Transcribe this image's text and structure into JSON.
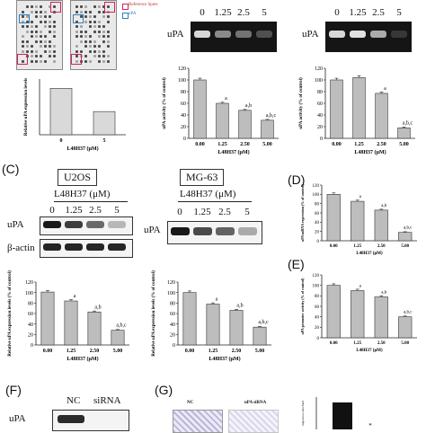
{
  "panels": {
    "A": {
      "legend": {
        "reference": "Reference Spots",
        "upa": "uPA"
      },
      "ylabel": "Relative uPA expression levels",
      "xlabel": "L48H37 (μM)",
      "categories": [
        "0",
        "5"
      ]
    },
    "B": {
      "blot_left": {
        "label": "uPA",
        "lanes": [
          "0",
          "1.25",
          "2.5",
          "5"
        ]
      },
      "blot_right": {
        "label": "uPA",
        "lanes": [
          "0",
          "1.25",
          "2.5",
          "5"
        ]
      },
      "chart_left": {
        "ylabel": "uPA activity (% of control)",
        "xlabel": "L48H37 (μM)"
      },
      "chart_right": {
        "ylabel": "uPA activity (% of control)",
        "xlabel": "L48H37 (μM)"
      }
    },
    "C": {
      "letter": "(C)",
      "u2os": {
        "title": "U2OS",
        "conc": "L48H37 (μM)",
        "lanes": [
          "0",
          "1.25",
          "2.5",
          "5"
        ],
        "rows": [
          "uPA",
          "β-actin"
        ]
      },
      "mg63": {
        "title": "MG-63",
        "conc": "L48H37 (μM)",
        "lanes": [
          "0",
          "1.25",
          "2.5",
          "5"
        ],
        "row": "uPA"
      },
      "chart_left": {
        "ylabel": "Relative uPA expression levels (% of control)",
        "xlabel": "L48H37 (μM)"
      },
      "chart_right": {
        "ylabel": "Relative uPA expression levels (% of control)",
        "xlabel": "L48H37 (μM)"
      }
    },
    "D": {
      "letter": "(D)",
      "ylabel": "uPA mRNA expression (% of control)",
      "xlabel": "L48H37 (μM)"
    },
    "E": {
      "letter": "(E)",
      "ylabel": "uPA promoter activity (% of control)",
      "xlabel": "L48H37 (μM)"
    },
    "F": {
      "letter": "(F)",
      "lanes": [
        "NC",
        "siRNA"
      ],
      "row": "uPA"
    },
    "G": {
      "letter": "(G)",
      "labels": [
        "NC",
        "uPA siRNA"
      ],
      "ylabel": "migration cells/field",
      "star": "*"
    }
  },
  "chart_data": [
    {
      "id": "A",
      "type": "bar",
      "categories": [
        "0",
        "5"
      ],
      "values": [
        100,
        50
      ],
      "ylim": [
        0,
        120
      ],
      "xlabel": "L48H37 (μM)",
      "ylabel": "Relative uPA expression levels"
    },
    {
      "id": "B-left",
      "type": "bar",
      "categories": [
        "0.00",
        "1.25",
        "2.50",
        "5.00"
      ],
      "values": [
        100,
        60,
        48,
        31
      ],
      "ylim": [
        0,
        120
      ],
      "yticks": [
        0,
        20,
        40,
        60,
        80,
        100,
        120
      ],
      "letters": [
        "",
        "a",
        "a,b",
        "a,b,c"
      ],
      "xlabel": "L48H37 (μM)",
      "ylabel": "uPA activity (% of control)"
    },
    {
      "id": "B-right",
      "type": "bar",
      "categories": [
        "0.00",
        "1.25",
        "2.50",
        "5.00"
      ],
      "values": [
        100,
        104,
        77,
        18
      ],
      "ylim": [
        0,
        120
      ],
      "yticks": [
        0,
        20,
        40,
        60,
        80,
        100,
        120
      ],
      "letters": [
        "",
        "",
        "a",
        "a,b,c"
      ],
      "xlabel": "L48H37 (μM)",
      "ylabel": "uPA activity (% of control)"
    },
    {
      "id": "C-left",
      "type": "bar",
      "categories": [
        "0.00",
        "1.25",
        "2.50",
        "5.00"
      ],
      "values": [
        101,
        84,
        63,
        28
      ],
      "ylim": [
        0,
        120
      ],
      "yticks": [
        0,
        20,
        40,
        60,
        80,
        100,
        120
      ],
      "letters": [
        "",
        "a",
        "a,b",
        "a,b,c"
      ],
      "xlabel": "L48H37 (μM)",
      "ylabel": "Relative uPA expression levels (% of control)"
    },
    {
      "id": "C-right",
      "type": "bar",
      "categories": [
        "0.00",
        "1.25",
        "2.50",
        "5.00"
      ],
      "values": [
        100,
        78,
        66,
        34
      ],
      "ylim": [
        0,
        120
      ],
      "yticks": [
        0,
        20,
        40,
        60,
        80,
        100,
        120
      ],
      "letters": [
        "",
        "a",
        "a,b",
        "a,b,c"
      ],
      "xlabel": "L48H37 (μM)",
      "ylabel": "Relative uPA expression levels (% of control)"
    },
    {
      "id": "D",
      "type": "bar",
      "categories": [
        "0.00",
        "1.25",
        "2.50",
        "5.00"
      ],
      "values": [
        100,
        85,
        66,
        18
      ],
      "ylim": [
        0,
        120
      ],
      "yticks": [
        0,
        20,
        40,
        60,
        80,
        100,
        120
      ],
      "letters": [
        "",
        "a",
        "a,b",
        "a,b,c"
      ],
      "xlabel": "L48H37 (μM)",
      "ylabel": "uPA mRNA expression (% of control)"
    },
    {
      "id": "E",
      "type": "bar",
      "categories": [
        "0.00",
        "1.25",
        "2.50",
        "5.00"
      ],
      "values": [
        100,
        90,
        78,
        40
      ],
      "ylim": [
        0,
        120
      ],
      "yticks": [
        0,
        20,
        40,
        60,
        80,
        100,
        120
      ],
      "letters": [
        "",
        "a",
        "a,b",
        "a,b,c"
      ],
      "xlabel": "L48H37 (μM)",
      "ylabel": "uPA promoter activity (% of control)"
    },
    {
      "id": "G",
      "type": "bar",
      "categories": [
        "NC",
        "uPA siRNA"
      ],
      "values": [
        100,
        0
      ],
      "ylim": [
        0,
        120
      ],
      "letters": [
        "",
        "*"
      ],
      "xlabel": "",
      "ylabel": "migration cells/field"
    }
  ]
}
